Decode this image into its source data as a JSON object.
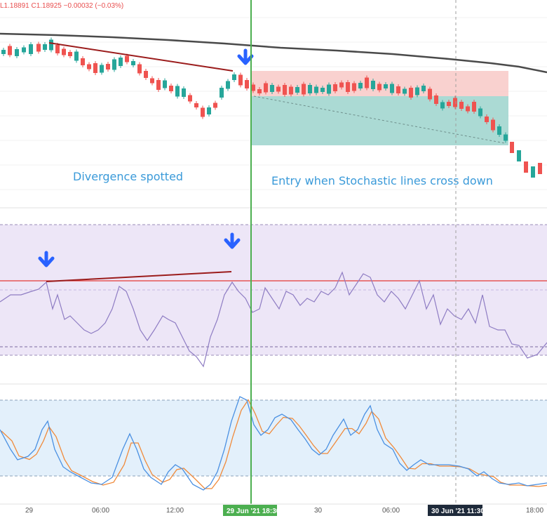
{
  "header": {
    "ohlc": "L1.18891  C1.18925  −0.00032 (−0.03%)"
  },
  "annotations": {
    "divergence": "Divergence spotted",
    "entry": "Entry when Stochastic lines cross down"
  },
  "colors": {
    "bull": "#26a69a",
    "bear": "#ef5350",
    "ma": "#4a4a4a",
    "trendline": "#9b1c1c",
    "entry_line": "#4caf50",
    "rsi_line": "#8e7cc3",
    "rsi_level": "#e53935",
    "stoch_k": "#4a90e2",
    "stoch_d": "#f08a3a",
    "arrow": "#2962ff",
    "annotation_text": "#3a9ad9"
  },
  "chart_data": [
    {
      "type": "candlestick",
      "panel": "price",
      "ma_line": true,
      "candles_dir": [
        "up",
        "down",
        "up",
        "up",
        "up",
        "down",
        "up",
        "up",
        "down",
        "down",
        "down",
        "up",
        "down",
        "down",
        "down",
        "up",
        "down",
        "up",
        "up",
        "down",
        "up",
        "down",
        "down",
        "down",
        "down",
        "up",
        "down",
        "up",
        "up",
        "down",
        "down",
        "down",
        "up",
        "down",
        "up",
        "up",
        "up",
        "down",
        "down",
        "down",
        "down",
        "down",
        "up",
        "down",
        "down",
        "down",
        "up",
        "down",
        "up",
        "up",
        "up",
        "up",
        "down",
        "down",
        "down",
        "down",
        "up",
        "down",
        "up",
        "down",
        "up",
        "up",
        "down",
        "up",
        "down",
        "up",
        "up",
        "down",
        "down",
        "up",
        "down",
        "down",
        "down",
        "down",
        "down",
        "up",
        "down",
        "down",
        "up",
        "up"
      ]
    },
    {
      "type": "line",
      "panel": "rsi",
      "levels": [
        "70",
        "30"
      ]
    },
    {
      "type": "line",
      "panel": "stochastic",
      "series": [
        {
          "color": "#4a90e2"
        },
        {
          "color": "#f08a3a"
        }
      ],
      "levels": [
        "80",
        "20"
      ]
    }
  ],
  "x_axis": {
    "ticks": [
      "29",
      "06:00",
      "12:00",
      "30",
      "06:00",
      "18:00"
    ],
    "highlight_left": "29 Jun '21  18:30",
    "highlight_right": "30 Jun '21  11:30"
  }
}
